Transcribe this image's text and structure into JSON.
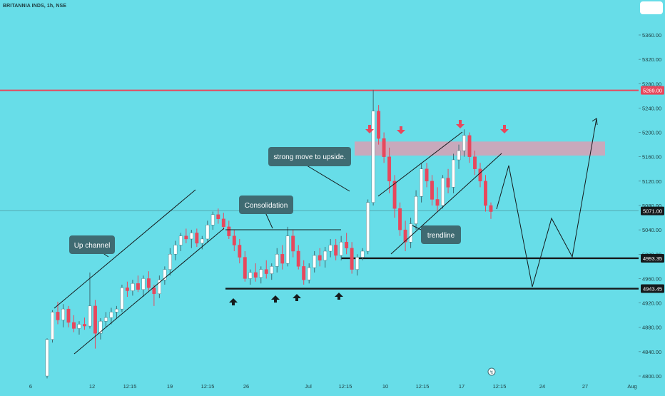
{
  "header": {
    "symbol_line": "BRITANNIA INDS, 1h, NSE"
  },
  "chart_data": {
    "type": "candlestick",
    "symbol": "BRITANNIA INDS",
    "interval": "1h",
    "exchange": "NSE",
    "y_ticks": [
      4800,
      4840,
      4880,
      4920,
      4960,
      5000,
      5040,
      5080,
      5120,
      5160,
      5200,
      5240,
      5280,
      5320,
      5360
    ],
    "y_tick_labels": [
      "4800.00",
      "4840.00",
      "4880.00",
      "4920.00",
      "4960.00",
      "5000.00",
      "5040.00",
      "5080.00",
      "5120.00",
      "5160.00",
      "5200.00",
      "5240.00",
      "5280.00",
      "5320.00",
      "5360.00"
    ],
    "x_tick_labels": [
      "6",
      "12",
      "12:15",
      "19",
      "12:15",
      "26",
      "Jul",
      "12:15",
      "10",
      "12:15",
      "17",
      "12:15",
      "24",
      "27",
      "Aug"
    ],
    "price_labels": [
      {
        "value": 5269,
        "text": "5269.00",
        "color": "#e8475c"
      },
      {
        "value": 5071,
        "text": "5071.00",
        "color": "#151a1c"
      },
      {
        "value": 4993.35,
        "text": "4993.35",
        "color": "#151a1c"
      },
      {
        "value": 4943.45,
        "text": "4943.45",
        "color": "#151a1c"
      }
    ],
    "horizontal_lines": [
      {
        "value": 5269,
        "color": "#e8475c"
      },
      {
        "value": 4993.35,
        "color": "#151a1c"
      },
      {
        "value": 4943.45,
        "color": "#151a1c"
      }
    ],
    "resistance_zone": {
      "from": 5162,
      "to": 5185,
      "color": "#d9a0b4"
    },
    "annotations": [
      "Up channel",
      "Consolidation",
      "strong move to upside.",
      "trendline"
    ],
    "colors": {
      "up": "#ffffff",
      "down": "#e8475c",
      "background": "#67dde8",
      "annotation_bg": "#3f6b72"
    },
    "candles": [
      [
        4800,
        4862,
        4796,
        4860
      ],
      [
        4860,
        4908,
        4855,
        4905
      ],
      [
        4905,
        4922,
        4885,
        4892
      ],
      [
        4892,
        4918,
        4880,
        4910
      ],
      [
        4910,
        4915,
        4880,
        4888
      ],
      [
        4888,
        4900,
        4872,
        4878
      ],
      [
        4878,
        4890,
        4868,
        4885
      ],
      [
        4885,
        4896,
        4876,
        4882
      ],
      [
        4882,
        4970,
        4878,
        4915
      ],
      [
        4915,
        4925,
        4845,
        4870
      ],
      [
        4870,
        4895,
        4860,
        4890
      ],
      [
        4890,
        4905,
        4880,
        4896
      ],
      [
        4896,
        4912,
        4885,
        4905
      ],
      [
        4905,
        4915,
        4895,
        4910
      ],
      [
        4910,
        4950,
        4905,
        4945
      ],
      [
        4945,
        4955,
        4930,
        4940
      ],
      [
        4940,
        4958,
        4932,
        4952
      ],
      [
        4952,
        4965,
        4938,
        4942
      ],
      [
        4942,
        4965,
        4930,
        4960
      ],
      [
        4960,
        4972,
        4940,
        4945
      ],
      [
        4945,
        4950,
        4915,
        4935
      ],
      [
        4935,
        4965,
        4928,
        4958
      ],
      [
        4958,
        4980,
        4950,
        4975
      ],
      [
        4975,
        5010,
        4965,
        5000
      ],
      [
        5000,
        5022,
        4990,
        5015
      ],
      [
        5015,
        5035,
        5005,
        5030
      ],
      [
        5030,
        5042,
        5018,
        5025
      ],
      [
        5025,
        5040,
        5010,
        5035
      ],
      [
        5035,
        5042,
        5012,
        5018
      ],
      [
        5018,
        5030,
        5008,
        5025
      ],
      [
        5025,
        5055,
        5020,
        5048
      ],
      [
        5048,
        5070,
        5040,
        5065
      ],
      [
        5065,
        5075,
        5050,
        5058
      ],
      [
        5058,
        5068,
        5040,
        5045
      ],
      [
        5045,
        5055,
        5025,
        5030
      ],
      [
        5030,
        5040,
        5005,
        5015
      ],
      [
        5015,
        5025,
        4985,
        4995
      ],
      [
        4995,
        5005,
        4955,
        4960
      ],
      [
        4960,
        4975,
        4950,
        4970
      ],
      [
        4970,
        4985,
        4955,
        4962
      ],
      [
        4962,
        4980,
        4952,
        4975
      ],
      [
        4975,
        4990,
        4960,
        4968
      ],
      [
        4968,
        4985,
        4958,
        4980
      ],
      [
        4980,
        5010,
        4970,
        5000
      ],
      [
        5000,
        5015,
        4975,
        4985
      ],
      [
        4985,
        5045,
        4980,
        5030
      ],
      [
        5030,
        5040,
        4995,
        5005
      ],
      [
        5005,
        5015,
        4975,
        4980
      ],
      [
        4980,
        4990,
        4950,
        4958
      ],
      [
        4958,
        4985,
        4952,
        4978
      ],
      [
        4978,
        5005,
        4970,
        4998
      ],
      [
        4998,
        5010,
        4980,
        4990
      ],
      [
        4990,
        5012,
        4978,
        5005
      ],
      [
        5005,
        5025,
        4995,
        5015
      ],
      [
        5015,
        5025,
        4990,
        4998
      ],
      [
        4998,
        5030,
        4990,
        5020
      ],
      [
        5020,
        5035,
        5000,
        5010
      ],
      [
        5010,
        5020,
        4968,
        4975
      ],
      [
        4975,
        5000,
        4965,
        4995
      ],
      [
        4995,
        5010,
        4990,
        5005
      ],
      [
        5005,
        5090,
        5000,
        5085
      ],
      [
        5085,
        5270,
        5080,
        5235
      ],
      [
        5235,
        5245,
        5180,
        5190
      ],
      [
        5190,
        5200,
        5150,
        5160
      ],
      [
        5160,
        5175,
        5100,
        5120
      ],
      [
        5120,
        5130,
        5060,
        5075
      ],
      [
        5075,
        5085,
        5030,
        5040
      ],
      [
        5040,
        5055,
        5005,
        5020
      ],
      [
        5020,
        5060,
        5010,
        5050
      ],
      [
        5050,
        5105,
        5040,
        5095
      ],
      [
        5095,
        5150,
        5085,
        5140
      ],
      [
        5140,
        5150,
        5110,
        5120
      ],
      [
        5120,
        5130,
        5080,
        5090
      ],
      [
        5090,
        5110,
        5070,
        5080
      ],
      [
        5080,
        5130,
        5075,
        5125
      ],
      [
        5125,
        5140,
        5100,
        5110
      ],
      [
        5110,
        5165,
        5100,
        5155
      ],
      [
        5155,
        5180,
        5140,
        5170
      ],
      [
        5170,
        5205,
        5160,
        5195
      ],
      [
        5195,
        5200,
        5150,
        5160
      ],
      [
        5160,
        5170,
        5130,
        5140
      ],
      [
        5140,
        5150,
        5110,
        5120
      ],
      [
        5120,
        5130,
        5070,
        5080
      ],
      [
        5080,
        5085,
        5058,
        5070
      ]
    ]
  }
}
